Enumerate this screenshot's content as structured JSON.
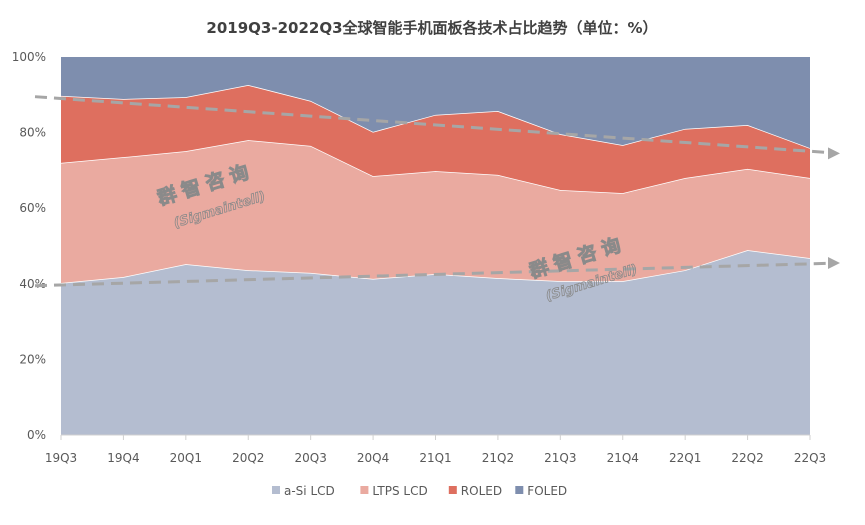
{
  "chart_data": {
    "type": "area",
    "stacked": true,
    "title": "2019Q3-2022Q3全球智能手机面板各技术占比趋势（单位：%）",
    "categories": [
      "19Q3",
      "19Q4",
      "20Q1",
      "20Q2",
      "20Q3",
      "20Q4",
      "21Q1",
      "21Q2",
      "21Q3",
      "21Q4",
      "22Q1",
      "22Q2",
      "22Q3"
    ],
    "yticks": [
      "0%",
      "20%",
      "40%",
      "60%",
      "80%",
      "100%"
    ],
    "ylim": [
      0,
      100
    ],
    "legend_position": "bottom",
    "series": [
      {
        "name": "a-Si LCD",
        "color": "#b4bdd0",
        "values": [
          40.2,
          41.8,
          45.2,
          43.6,
          42.9,
          41.3,
          42.6,
          41.5,
          40.7,
          40.7,
          43.6,
          48.9,
          46.8
        ]
      },
      {
        "name": "LTPS LCD",
        "color": "#eaaaa0",
        "values": [
          31.8,
          31.7,
          29.9,
          34.4,
          33.6,
          27.2,
          27.2,
          27.3,
          24.1,
          23.3,
          24.4,
          21.5,
          21.2
        ]
      },
      {
        "name": "ROLED",
        "color": "#de6f5f",
        "values": [
          17.7,
          15.4,
          14.3,
          14.6,
          11.9,
          11.7,
          14.9,
          16.9,
          14.8,
          12.7,
          13.0,
          11.6,
          7.9
        ]
      },
      {
        "name": "FOLED",
        "color": "#7e8eae",
        "values": [
          10.3,
          11.1,
          10.6,
          7.4,
          11.6,
          19.8,
          15.3,
          14.3,
          20.4,
          23.3,
          19.0,
          18.0,
          24.1
        ]
      }
    ],
    "trend_lines": [
      {
        "name": "upper-trend",
        "from": 89.5,
        "to": 74.5
      },
      {
        "name": "lower-trend",
        "from": 39.5,
        "to": 45.5
      }
    ],
    "watermark": {
      "cn": "群智咨询",
      "en": "(Sigmaintell)"
    }
  }
}
